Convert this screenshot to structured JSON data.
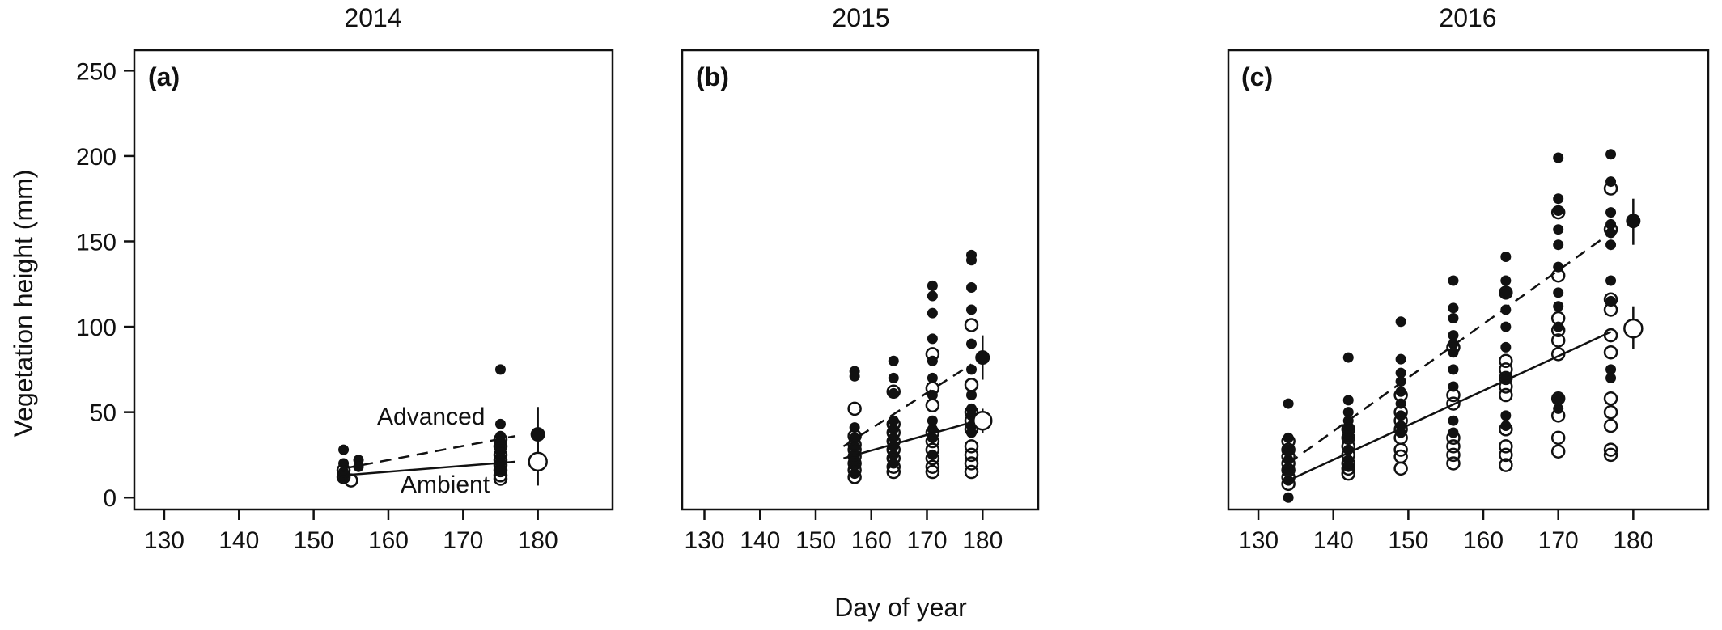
{
  "figure": {
    "xlabel": "Day of year",
    "ylabel": "Vegetation height (mm)",
    "y_ticks": [
      0,
      50,
      100,
      150,
      200,
      250
    ],
    "x_ticks": [
      130,
      140,
      150,
      160,
      170,
      180
    ]
  },
  "chart_data": [
    {
      "type": "scatter",
      "title": "2014",
      "panel_label": "(a)",
      "xlim": [
        126,
        190
      ],
      "ylim": [
        -7,
        262
      ],
      "annotations": {
        "advanced": "Advanced",
        "ambient": "Ambient"
      },
      "advanced_points": [
        [
          154,
          28
        ],
        [
          154,
          20
        ],
        [
          154,
          15
        ],
        [
          154,
          12
        ],
        [
          156,
          22
        ],
        [
          156,
          18
        ],
        [
          175,
          75
        ],
        [
          175,
          43
        ],
        [
          175,
          36
        ],
        [
          175,
          33
        ],
        [
          175,
          30
        ],
        [
          175,
          27
        ],
        [
          175,
          24
        ],
        [
          175,
          20
        ],
        [
          175,
          16
        ]
      ],
      "ambient_points": [
        [
          154,
          16
        ],
        [
          154,
          12
        ],
        [
          155,
          10
        ],
        [
          175,
          34
        ],
        [
          175,
          30
        ],
        [
          175,
          25
        ],
        [
          175,
          22
        ],
        [
          175,
          19
        ],
        [
          175,
          16
        ],
        [
          175,
          13
        ],
        [
          175,
          11
        ]
      ],
      "advanced_line": [
        [
          154,
          17
        ],
        [
          177,
          36
        ]
      ],
      "ambient_line": [
        [
          154,
          13
        ],
        [
          177,
          21
        ]
      ],
      "advanced_mean": {
        "x": 180,
        "y": 37,
        "low": 22,
        "high": 53
      },
      "ambient_mean": {
        "x": 180,
        "y": 21,
        "low": 7,
        "high": 35
      }
    },
    {
      "type": "scatter",
      "title": "2015",
      "panel_label": "(b)",
      "xlim": [
        126,
        190
      ],
      "ylim": [
        -7,
        262
      ],
      "advanced_points": [
        [
          157,
          74
        ],
        [
          157,
          71
        ],
        [
          157,
          41
        ],
        [
          157,
          35
        ],
        [
          157,
          30
        ],
        [
          157,
          25
        ],
        [
          157,
          20
        ],
        [
          157,
          14
        ],
        [
          164,
          80
        ],
        [
          164,
          70
        ],
        [
          164,
          61
        ],
        [
          164,
          45
        ],
        [
          164,
          40
        ],
        [
          164,
          35
        ],
        [
          164,
          30
        ],
        [
          164,
          25
        ],
        [
          164,
          20
        ],
        [
          171,
          124
        ],
        [
          171,
          118
        ],
        [
          171,
          108
        ],
        [
          171,
          93
        ],
        [
          171,
          80
        ],
        [
          171,
          70
        ],
        [
          171,
          60
        ],
        [
          171,
          45
        ],
        [
          171,
          40
        ],
        [
          171,
          35
        ],
        [
          171,
          25
        ],
        [
          178,
          142
        ],
        [
          178,
          139
        ],
        [
          178,
          123
        ],
        [
          178,
          110
        ],
        [
          178,
          90
        ],
        [
          178,
          75
        ],
        [
          178,
          60
        ],
        [
          178,
          52
        ],
        [
          178,
          48
        ],
        [
          178,
          42
        ],
        [
          178,
          38
        ]
      ],
      "ambient_points": [
        [
          157,
          52
        ],
        [
          157,
          36
        ],
        [
          157,
          31
        ],
        [
          157,
          28
        ],
        [
          157,
          24
        ],
        [
          157,
          20
        ],
        [
          157,
          16
        ],
        [
          157,
          12
        ],
        [
          164,
          62
        ],
        [
          164,
          43
        ],
        [
          164,
          38
        ],
        [
          164,
          33
        ],
        [
          164,
          28
        ],
        [
          164,
          23
        ],
        [
          164,
          18
        ],
        [
          164,
          15
        ],
        [
          171,
          84
        ],
        [
          171,
          64
        ],
        [
          171,
          54
        ],
        [
          171,
          38
        ],
        [
          171,
          33
        ],
        [
          171,
          28
        ],
        [
          171,
          23
        ],
        [
          171,
          18
        ],
        [
          171,
          15
        ],
        [
          178,
          101
        ],
        [
          178,
          66
        ],
        [
          178,
          50
        ],
        [
          178,
          45
        ],
        [
          178,
          40
        ],
        [
          178,
          30
        ],
        [
          178,
          25
        ],
        [
          178,
          20
        ],
        [
          178,
          15
        ]
      ],
      "advanced_line": [
        [
          155,
          30
        ],
        [
          178,
          78
        ]
      ],
      "ambient_line": [
        [
          155,
          23
        ],
        [
          178,
          44
        ]
      ],
      "advanced_mean": {
        "x": 180,
        "y": 82,
        "low": 69,
        "high": 95
      },
      "ambient_mean": {
        "x": 180,
        "y": 45,
        "low": 38,
        "high": 52
      }
    },
    {
      "type": "scatter",
      "title": "2016",
      "panel_label": "(c)",
      "xlim": [
        126,
        190
      ],
      "ylim": [
        -7,
        262
      ],
      "advanced_points": [
        [
          134,
          55
        ],
        [
          134,
          35
        ],
        [
          134,
          28
        ],
        [
          134,
          22
        ],
        [
          134,
          16
        ],
        [
          134,
          10
        ],
        [
          134,
          0
        ],
        [
          142,
          82
        ],
        [
          142,
          57
        ],
        [
          142,
          50
        ],
        [
          142,
          45
        ],
        [
          142,
          40
        ],
        [
          142,
          35
        ],
        [
          142,
          28
        ],
        [
          142,
          22
        ],
        [
          142,
          18
        ],
        [
          149,
          103
        ],
        [
          149,
          81
        ],
        [
          149,
          73
        ],
        [
          149,
          68
        ],
        [
          149,
          62
        ],
        [
          149,
          55
        ],
        [
          149,
          48
        ],
        [
          149,
          42
        ],
        [
          149,
          38
        ],
        [
          156,
          127
        ],
        [
          156,
          111
        ],
        [
          156,
          105
        ],
        [
          156,
          95
        ],
        [
          156,
          90
        ],
        [
          156,
          85
        ],
        [
          156,
          75
        ],
        [
          156,
          65
        ],
        [
          156,
          45
        ],
        [
          156,
          38
        ],
        [
          163,
          141
        ],
        [
          163,
          127
        ],
        [
          163,
          120
        ],
        [
          163,
          110
        ],
        [
          163,
          100
        ],
        [
          163,
          88
        ],
        [
          163,
          70
        ],
        [
          163,
          48
        ],
        [
          163,
          42
        ],
        [
          170,
          199
        ],
        [
          170,
          175
        ],
        [
          170,
          168
        ],
        [
          170,
          157
        ],
        [
          170,
          148
        ],
        [
          170,
          135
        ],
        [
          170,
          120
        ],
        [
          170,
          112
        ],
        [
          170,
          100
        ],
        [
          170,
          58
        ],
        [
          170,
          52
        ],
        [
          177,
          201
        ],
        [
          177,
          185
        ],
        [
          177,
          167
        ],
        [
          177,
          160
        ],
        [
          177,
          155
        ],
        [
          177,
          148
        ],
        [
          177,
          127
        ],
        [
          177,
          115
        ],
        [
          177,
          75
        ],
        [
          177,
          70
        ]
      ],
      "ambient_points": [
        [
          134,
          33
        ],
        [
          134,
          28
        ],
        [
          134,
          24
        ],
        [
          134,
          20
        ],
        [
          134,
          16
        ],
        [
          134,
          12
        ],
        [
          134,
          8
        ],
        [
          142,
          40
        ],
        [
          142,
          35
        ],
        [
          142,
          30
        ],
        [
          142,
          25
        ],
        [
          142,
          20
        ],
        [
          142,
          17
        ],
        [
          142,
          14
        ],
        [
          149,
          60
        ],
        [
          149,
          50
        ],
        [
          149,
          45
        ],
        [
          149,
          40
        ],
        [
          149,
          35
        ],
        [
          149,
          28
        ],
        [
          149,
          24
        ],
        [
          149,
          17
        ],
        [
          156,
          88
        ],
        [
          156,
          60
        ],
        [
          156,
          55
        ],
        [
          156,
          35
        ],
        [
          156,
          30
        ],
        [
          156,
          25
        ],
        [
          156,
          20
        ],
        [
          163,
          120
        ],
        [
          163,
          80
        ],
        [
          163,
          75
        ],
        [
          163,
          70
        ],
        [
          163,
          65
        ],
        [
          163,
          60
        ],
        [
          163,
          40
        ],
        [
          163,
          30
        ],
        [
          163,
          25
        ],
        [
          163,
          19
        ],
        [
          170,
          167
        ],
        [
          170,
          130
        ],
        [
          170,
          105
        ],
        [
          170,
          98
        ],
        [
          170,
          92
        ],
        [
          170,
          84
        ],
        [
          170,
          58
        ],
        [
          170,
          48
        ],
        [
          170,
          35
        ],
        [
          170,
          27
        ],
        [
          177,
          181
        ],
        [
          177,
          157
        ],
        [
          177,
          116
        ],
        [
          177,
          110
        ],
        [
          177,
          95
        ],
        [
          177,
          85
        ],
        [
          177,
          58
        ],
        [
          177,
          50
        ],
        [
          177,
          42
        ],
        [
          177,
          28
        ],
        [
          177,
          25
        ]
      ],
      "advanced_line": [
        [
          134,
          20
        ],
        [
          177,
          155
        ]
      ],
      "ambient_line": [
        [
          134,
          10
        ],
        [
          177,
          97
        ]
      ],
      "advanced_mean": {
        "x": 180,
        "y": 162,
        "low": 148,
        "high": 175
      },
      "ambient_mean": {
        "x": 180,
        "y": 99,
        "low": 87,
        "high": 112
      }
    }
  ]
}
